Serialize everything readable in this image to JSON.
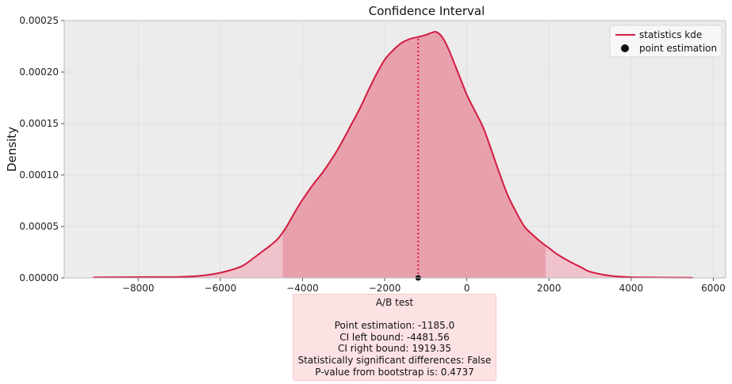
{
  "chart_data": {
    "type": "area",
    "title": "Confidence Interval",
    "xlabel": "",
    "ylabel": "Density",
    "xlim": [
      -9800,
      6300
    ],
    "ylim": [
      0,
      0.00025
    ],
    "x_ticks": [
      -8000,
      -6000,
      -4000,
      -2000,
      0,
      2000,
      4000,
      6000
    ],
    "x_tick_labels": [
      "−8000",
      "−6000",
      "−4000",
      "−2000",
      "0",
      "2000",
      "4000",
      "6000"
    ],
    "y_ticks": [
      0,
      5e-05,
      0.0001,
      0.00015,
      0.0002,
      0.00025
    ],
    "y_tick_labels": [
      "0.00000",
      "0.00005",
      "0.00010",
      "0.00015",
      "0.00020",
      "0.00025"
    ],
    "grid": true,
    "legend_position": "top-right",
    "series": [
      {
        "name": "statistics kde",
        "kind": "line",
        "color": "#d31b40",
        "x": [
          -9100,
          -8000,
          -7000,
          -6500,
          -6000,
          -5500,
          -5200,
          -5000,
          -4800,
          -4600,
          -4400,
          -4200,
          -4000,
          -3700,
          -3500,
          -3200,
          -3000,
          -2800,
          -2600,
          -2400,
          -2200,
          -2000,
          -1800,
          -1600,
          -1400,
          -1200,
          -1000,
          -800,
          -700,
          -600,
          -500,
          -400,
          -200,
          0,
          200,
          400,
          600,
          800,
          1000,
          1200,
          1400,
          1600,
          1800,
          2000,
          2200,
          2500,
          2800,
          3000,
          3500,
          4000,
          4500,
          5000,
          5500
        ],
        "y": [
          5e-07,
          8e-07,
          1e-06,
          2e-06,
          5e-06,
          1.1e-05,
          1.9e-05,
          2.5e-05,
          3.1e-05,
          3.8e-05,
          4.9e-05,
          6.3e-05,
          7.6e-05,
          9.3e-05,
          0.000103,
          0.000121,
          0.000135,
          0.00015,
          0.000165,
          0.000182,
          0.000198,
          0.000212,
          0.000221,
          0.000228,
          0.000232,
          0.000234,
          0.000236,
          0.000239,
          0.000238,
          0.000234,
          0.000227,
          0.000218,
          0.000198,
          0.000178,
          0.000162,
          0.000146,
          0.000124,
          0.000101,
          8e-05,
          6.4e-05,
          5e-05,
          4.2e-05,
          3.5e-05,
          2.9e-05,
          2.3e-05,
          1.6e-05,
          1e-05,
          6e-06,
          2e-06,
          7e-07,
          5e-07,
          3e-07,
          2e-07
        ]
      },
      {
        "name": "point estimation",
        "kind": "scatter",
        "color": "#111111",
        "x": [
          -1185.0
        ],
        "y": [
          0
        ]
      }
    ],
    "shaded_region": {
      "x_from": -4481.56,
      "x_to": 1919.35,
      "fill": "#e8a0ad",
      "outer_fill": "#f0c2cc"
    },
    "vertical_line": {
      "x": -1185.0,
      "color": "#d31b40",
      "style": "dotted"
    }
  },
  "textbox": {
    "line1": "A/B test",
    "line2": "",
    "line3": "Point estimation: -1185.0",
    "line4": "CI left bound: -4481.56",
    "line5": "CI right bound: 1919.35",
    "line6": "Statistically significant differences: False",
    "line7": "P-value from bootstrap is: 0.4737"
  },
  "colors": {
    "axes_background": "#ececec",
    "grid": "#dcdcdc",
    "textbox_background": "#fde2e4"
  }
}
